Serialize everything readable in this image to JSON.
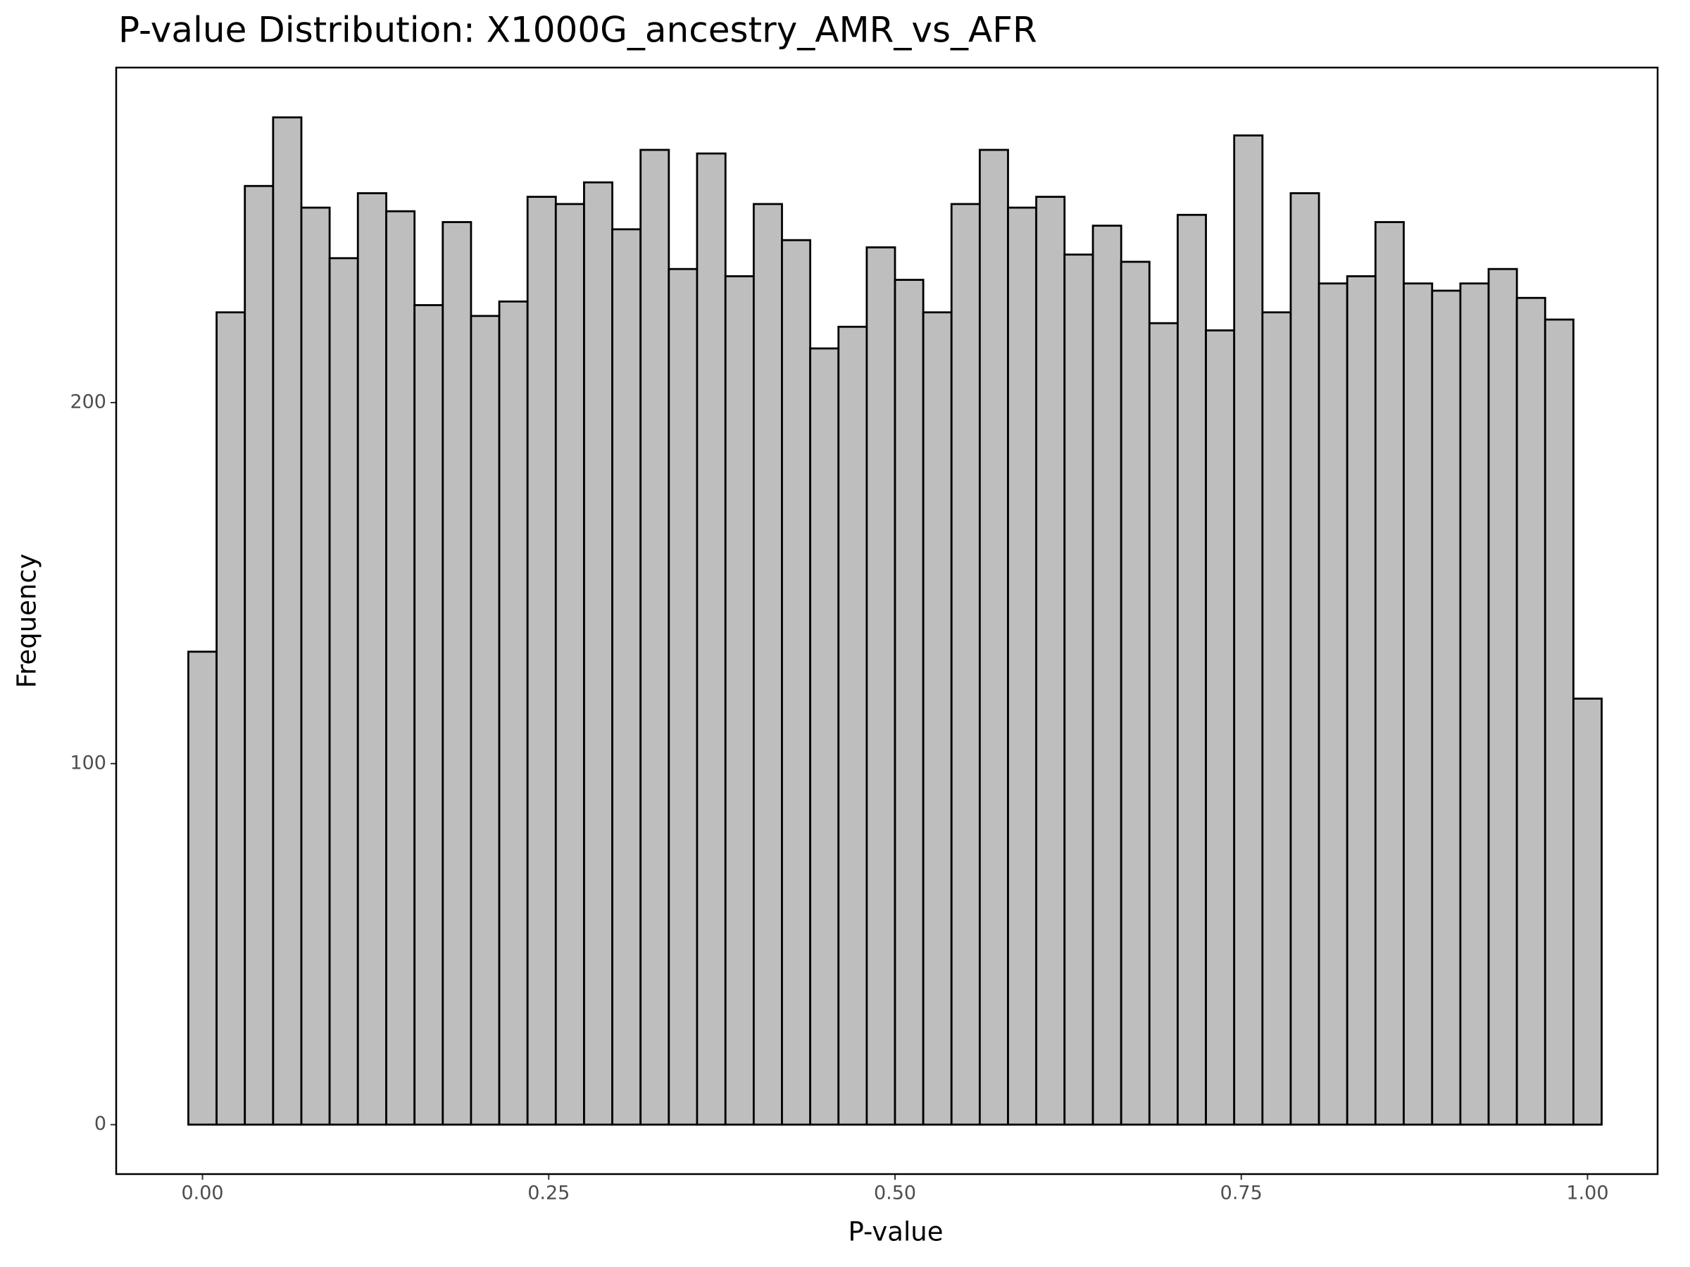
{
  "chart_data": {
    "type": "histogram",
    "title": "P-value Distribution: X1000G_ancestry_AMR_vs_AFR",
    "x_label": "P-value",
    "y_label": "Frequency",
    "bins": [
      -0.0102,
      0.0102,
      0.0306,
      0.051,
      0.0714,
      0.0918,
      0.1122,
      0.1327,
      0.1531,
      0.1735,
      0.1939,
      0.2143,
      0.2347,
      0.2551,
      0.2755,
      0.2959,
      0.3163,
      0.3367,
      0.3571,
      0.3776,
      0.398,
      0.4184,
      0.4388,
      0.4592,
      0.4796,
      0.5,
      0.5204,
      0.5408,
      0.5612,
      0.5816,
      0.602,
      0.6224,
      0.6429,
      0.6633,
      0.6837,
      0.7041,
      0.7245,
      0.7449,
      0.7653,
      0.7857,
      0.8061,
      0.8265,
      0.8469,
      0.8673,
      0.8878,
      0.9082,
      0.9286,
      0.949,
      0.9694,
      0.9898,
      1.0102
    ],
    "values": [
      131,
      225,
      260,
      279,
      254,
      240,
      258,
      253,
      227,
      250,
      224,
      228,
      257,
      255,
      261,
      248,
      270,
      237,
      269,
      235,
      255,
      245,
      215,
      221,
      243,
      234,
      225,
      255,
      270,
      254,
      257,
      241,
      249,
      239,
      222,
      252,
      220,
      274,
      225,
      258,
      233,
      235,
      250,
      233,
      231,
      233,
      237,
      229,
      223,
      118
    ],
    "color": "#bebebe",
    "edge_color": "#000000",
    "xlim": [
      -0.0623,
      1.0506
    ],
    "xticks": [
      {
        "value": 0,
        "label": "0.00"
      },
      {
        "value": 0.25,
        "label": "0.25"
      },
      {
        "value": 0.5,
        "label": "0.50"
      },
      {
        "value": 0.75,
        "label": "0.75"
      },
      {
        "value": 1,
        "label": "1.00"
      }
    ],
    "ylim": [
      -13.7,
      292.8
    ],
    "yticks": [
      0,
      100,
      200
    ],
    "grid": false
  }
}
